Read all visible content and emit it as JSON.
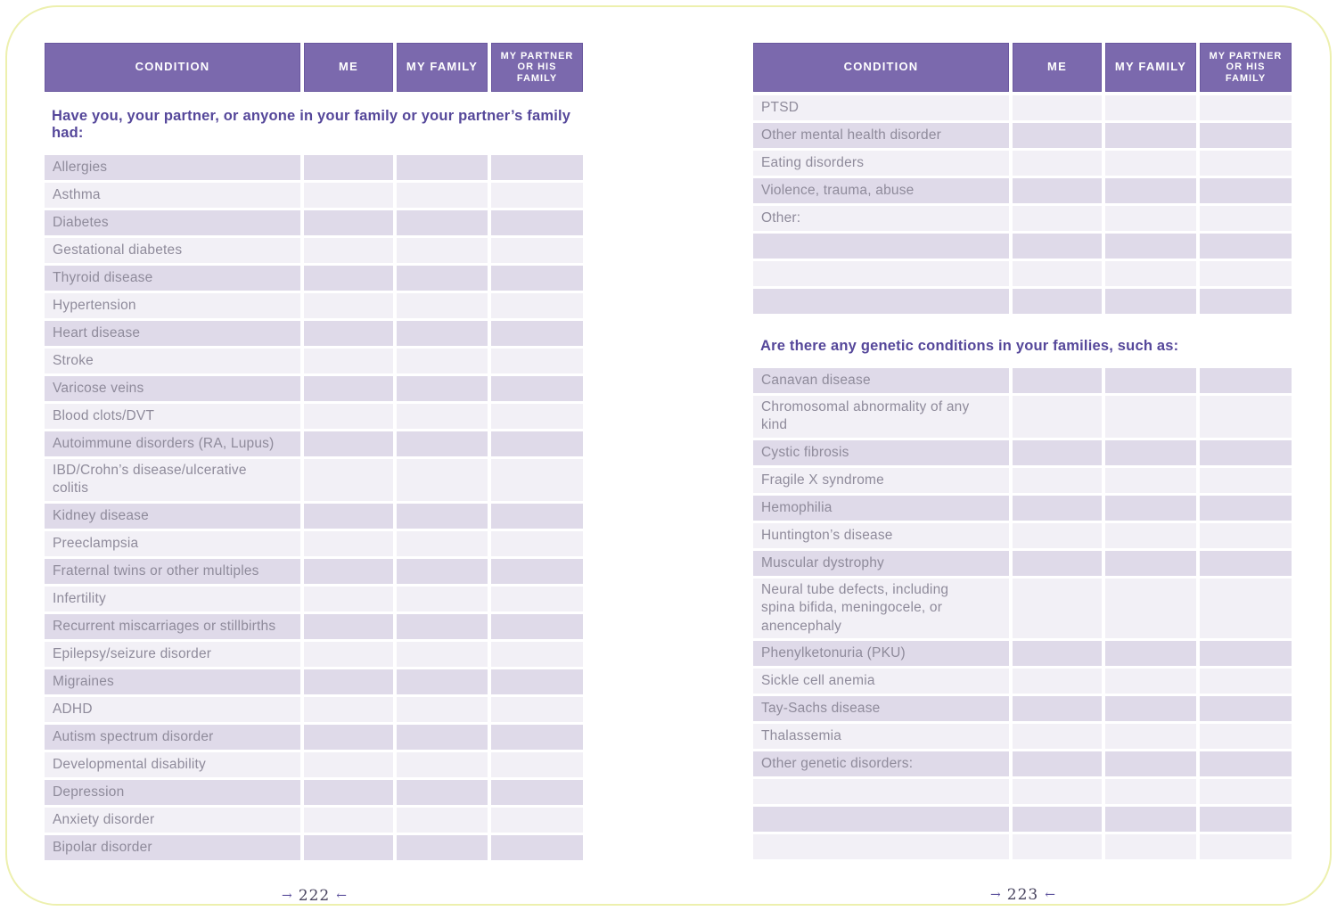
{
  "columns": [
    "CONDITION",
    "ME",
    "MY FAMILY",
    "MY PARTNER OR HIS FAMILY"
  ],
  "left_page": {
    "question": "Have you, your partner, or anyone in your family or your partner’s family had:",
    "conditions": [
      "Allergies",
      "Asthma",
      "Diabetes",
      "Gestational diabetes",
      "Thyroid disease",
      "Hypertension",
      "Heart disease",
      "Stroke",
      "Varicose veins",
      "Blood clots/DVT",
      "Autoimmune disorders (RA, Lupus)",
      "IBD/Crohn’s disease/ulcerative colitis",
      "Kidney disease",
      "Preeclampsia",
      "Fraternal twins or other multiples",
      "Infertility",
      "Recurrent miscarriages or stillbirths",
      "Epilepsy/seizure disorder",
      "Migraines",
      "ADHD",
      "Autism spectrum disorder",
      "Developmental disability",
      "Depression",
      "Anxiety disorder",
      "Bipolar disorder"
    ],
    "page_number": "222"
  },
  "right_page": {
    "conditions_top": [
      "PTSD",
      "Other mental health disorder",
      "Eating disorders",
      "Violence, trauma, abuse",
      "Other:",
      "",
      "",
      ""
    ],
    "question": "Are there any genetic conditions in your families, such as:",
    "conditions_genetic": [
      "Canavan disease",
      "Chromosomal abnormality of any kind",
      "Cystic fibrosis",
      "Fragile X syndrome",
      "Hemophilia",
      "Huntington’s disease",
      "Muscular dystrophy",
      "Neural tube defects, including spina bifida, meningocele, or anencephaly",
      "Phenylketonuria (PKU)",
      "Sickle cell anemia",
      "Tay-Sachs disease",
      "Thalassemia",
      "Other genetic disorders:",
      "",
      "",
      ""
    ],
    "page_number": "223"
  },
  "decorations": {
    "page_arrow_left": "→",
    "page_arrow_right": "←"
  },
  "colors": {
    "header-purple": "#7b69ad",
    "header-border": "#6a589f",
    "row-dark": "#dfdae9",
    "row-light": "#f2f0f6",
    "row-text": "#8f8b9b",
    "question-purple": "#55479a",
    "pagenum-color": "#4a4660",
    "arrow-purple": "#5f549e",
    "frame-yellow": "#edf0ae"
  }
}
